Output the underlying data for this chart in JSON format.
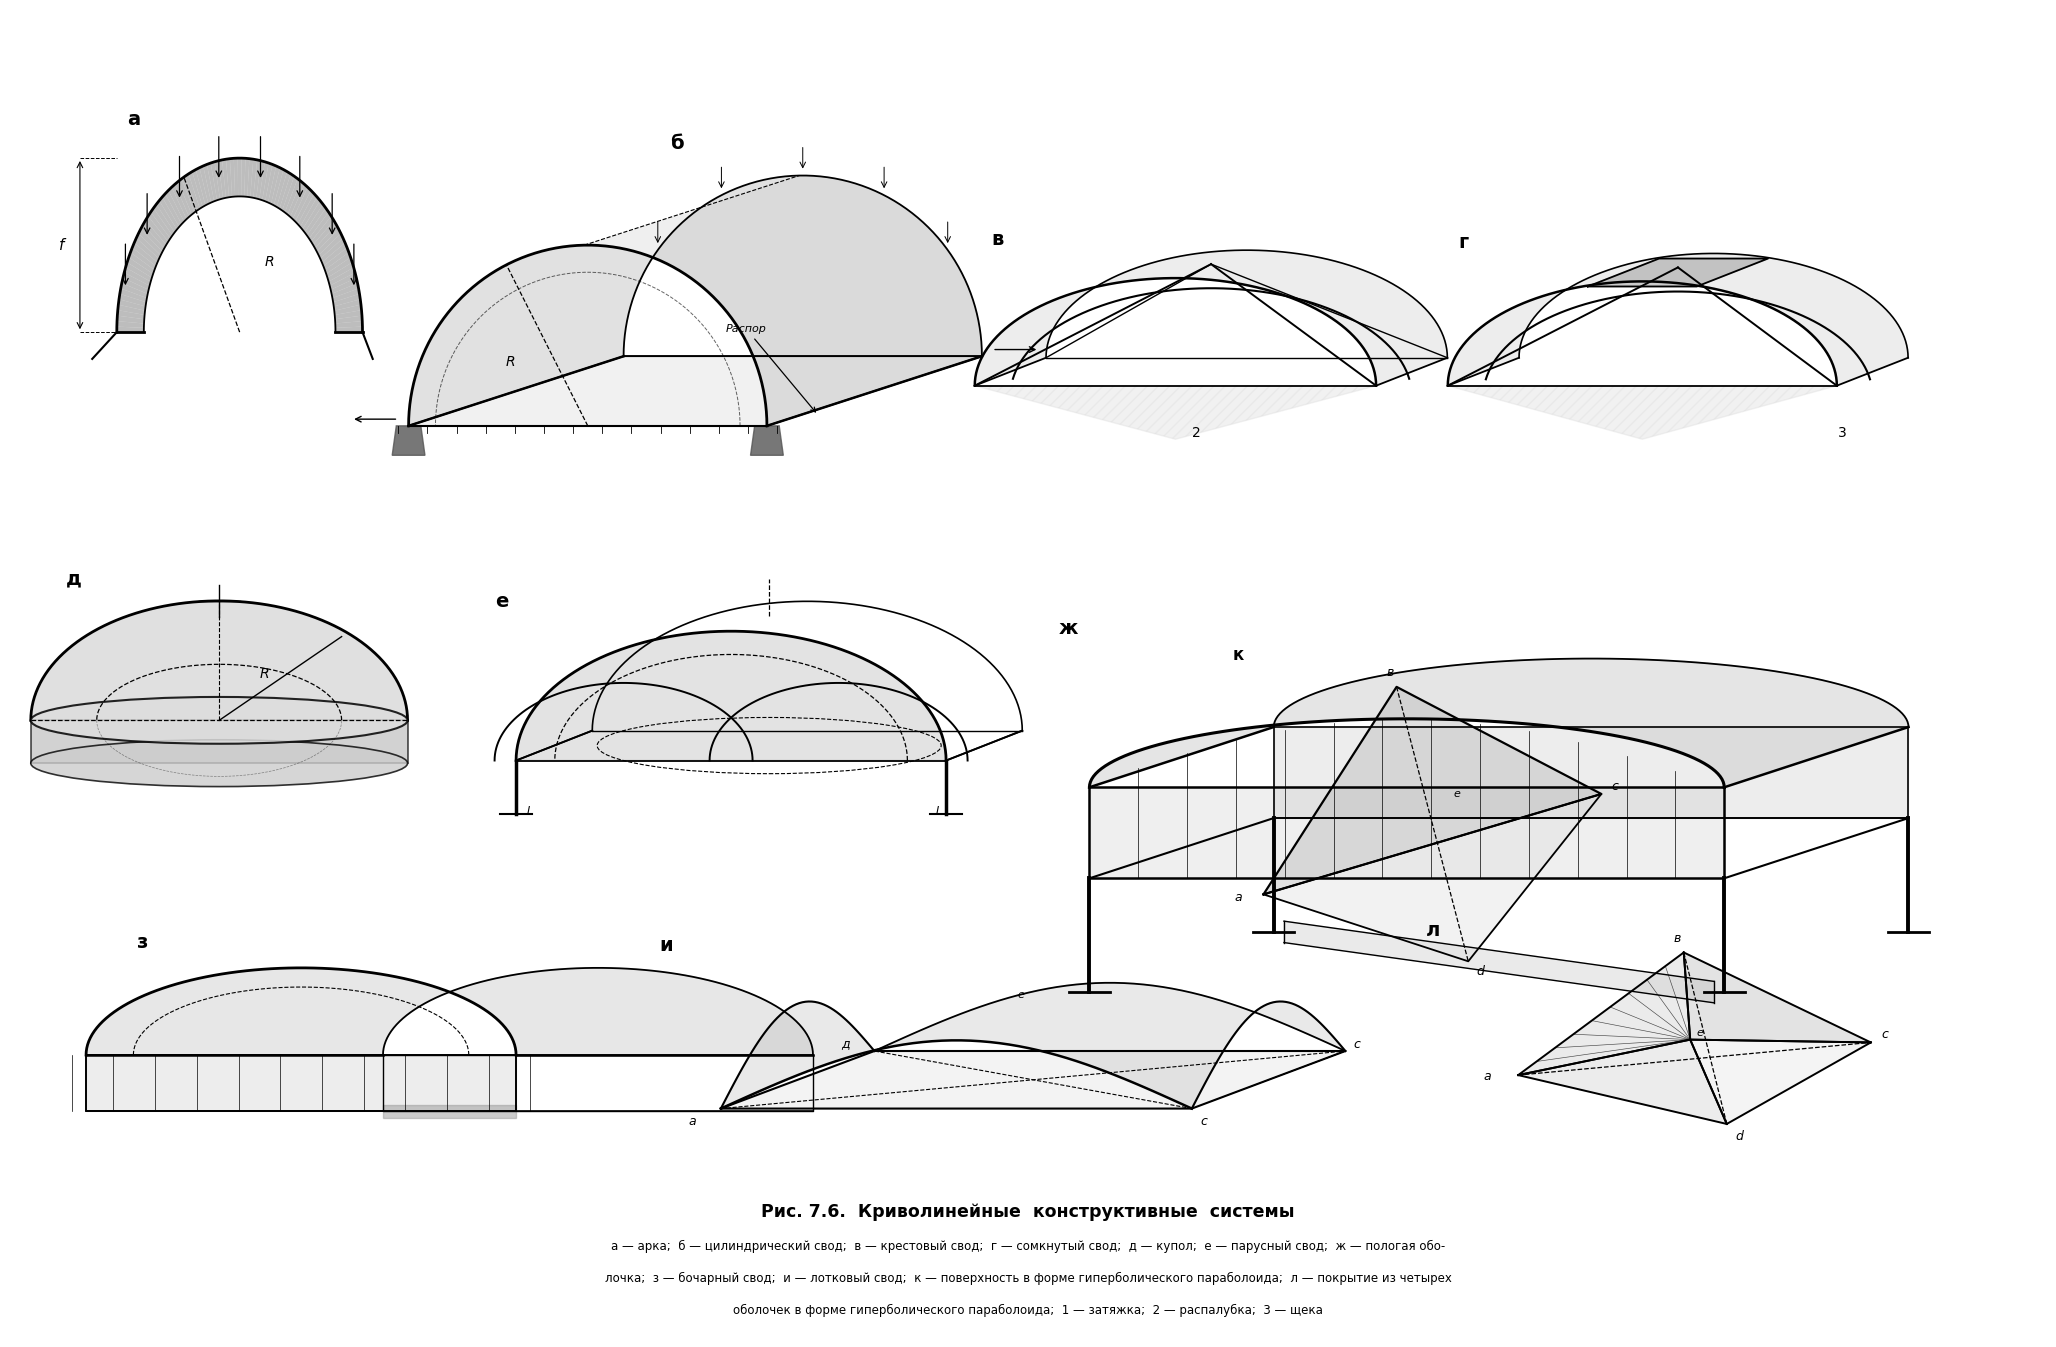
{
  "title": "Рис. 7.6.  Криволинейные  конструктивные  системы",
  "caption_line1": "а — арка;  б — цилиндрический свод;  в — крестовый свод;  г — сомкнутый свод;  д — купол;  е — парусный свод;  ж — пологая обо-",
  "caption_line2": "лочка;  з — бочарный свод;  и — лотковый свод;  к — поверхность в форме гиперболического параболоида;  л — покрытие из четырех",
  "caption_line3": "оболочек в форме гиперболического параболоида;  1 — затяжка;  2 — распалубка;  3 — щека",
  "bg_color": "#ffffff",
  "figure_size": [
    20.56,
    13.47
  ],
  "dpi": 100
}
